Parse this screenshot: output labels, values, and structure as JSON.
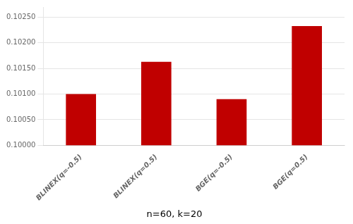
{
  "chart_data": {
    "type": "bar",
    "subtitle": "n=60, k=20",
    "categories": [
      "BLINEX(q=-0.5)",
      "BLINEX(q=0.5)",
      "BGE(q=-0.5)",
      "BGE(q=0.5)"
    ],
    "values": [
      0.101,
      0.10163,
      0.1009,
      0.10233
    ],
    "color": "#C00000",
    "ylim": [
      0.1,
      0.1027
    ],
    "yticks": [
      {
        "value": 0.1,
        "label": "0.10000"
      },
      {
        "value": 0.1005,
        "label": "0.10050"
      },
      {
        "value": 0.101,
        "label": "0.10100"
      },
      {
        "value": 0.1015,
        "label": "0.10150"
      },
      {
        "value": 0.102,
        "label": "0.10200"
      },
      {
        "value": 0.1025,
        "label": "0.10250"
      }
    ],
    "grid": true
  }
}
